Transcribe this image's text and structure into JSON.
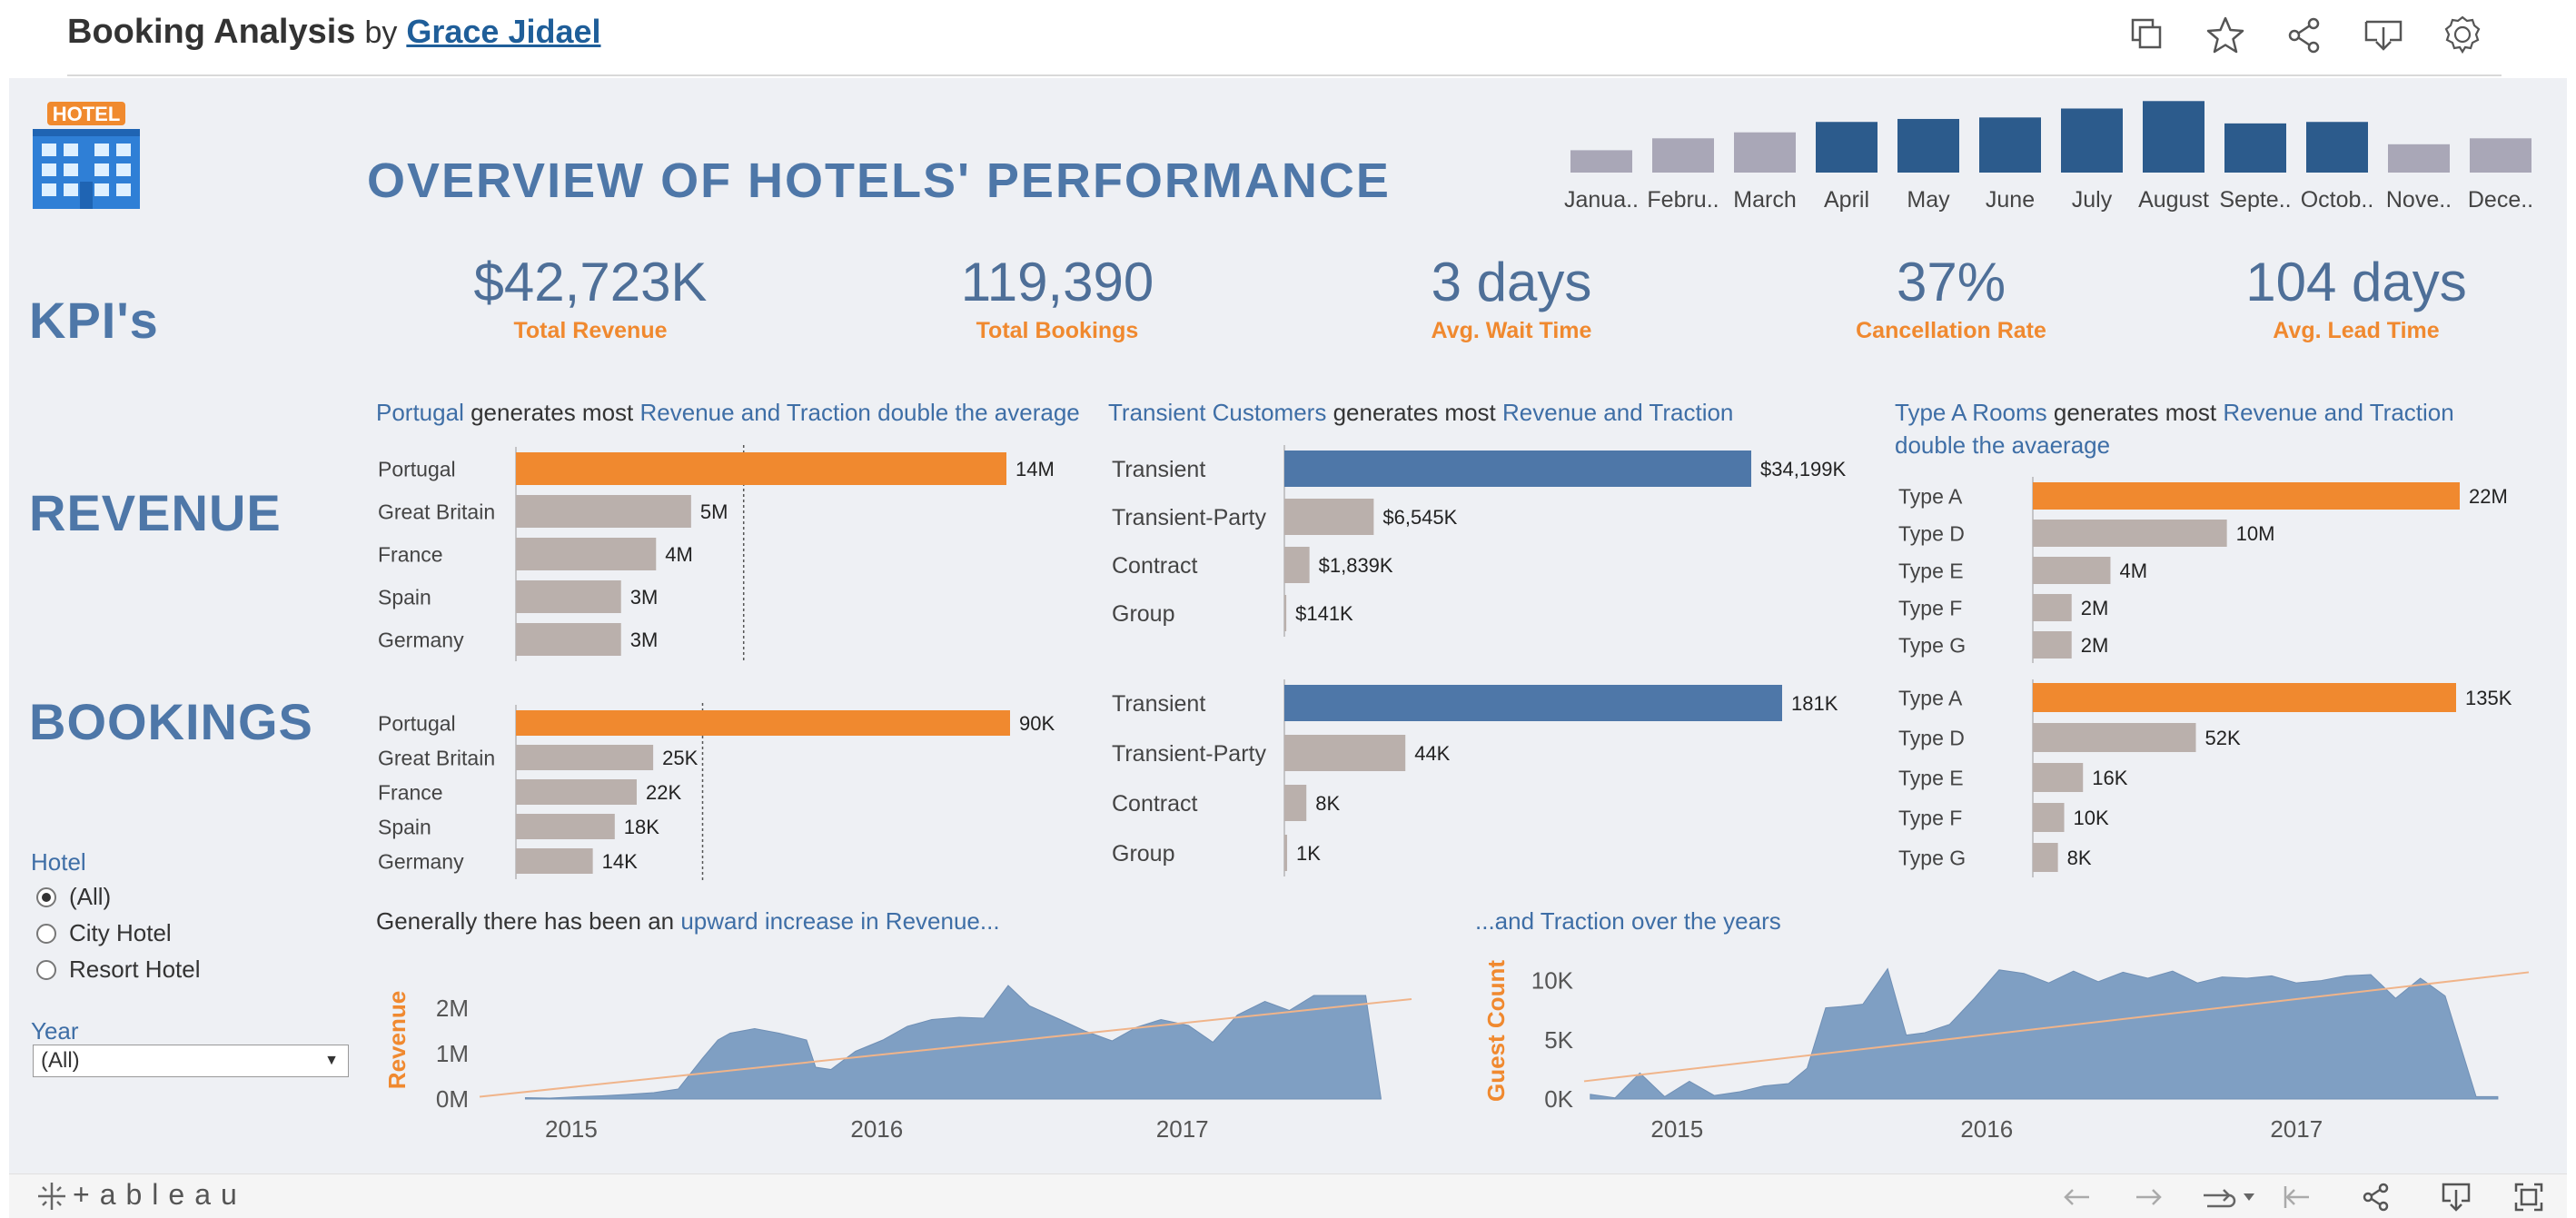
{
  "header": {
    "title": "Booking Analysis",
    "by": "by",
    "author": "Grace Jidael",
    "icons": [
      "copy-icon",
      "star-icon",
      "share-icon",
      "download-icon",
      "badge-icon"
    ]
  },
  "dashboard": {
    "logo_text": "HOTEL",
    "main_title": "OVERVIEW OF HOTELS' PERFORMANCE",
    "months": [
      "Janua..",
      "Febru..",
      "March",
      "April",
      "May",
      "June",
      "July",
      "August",
      "Septe..",
      "Octob..",
      "Nove..",
      "Dece.."
    ],
    "month_values": [
      0.3,
      0.46,
      0.54,
      0.68,
      0.72,
      0.74,
      0.86,
      0.96,
      0.66,
      0.68,
      0.38,
      0.46
    ],
    "month_highlight": [
      false,
      false,
      false,
      true,
      true,
      true,
      true,
      true,
      true,
      true,
      false,
      false
    ],
    "sections": {
      "kpi": "KPI's",
      "revenue": "REVENUE",
      "bookings": "BOOKINGS"
    },
    "kpis": [
      {
        "value": "$42,723K",
        "label": "Total Revenue"
      },
      {
        "value": "119,390",
        "label": "Total Bookings"
      },
      {
        "value": "3 days",
        "label": "Avg. Wait Time"
      },
      {
        "value": "37%",
        "label": "Cancellation Rate"
      },
      {
        "value": "104 days",
        "label": "Avg. Lead Time"
      }
    ],
    "subtitles": {
      "country": {
        "a": "Portugal",
        "b": " generates most ",
        "c": "Revenue and Traction double the average"
      },
      "customer": {
        "a": "Transient Customers",
        "b": " generates most ",
        "c": "Revenue and Traction"
      },
      "room": {
        "a": "Type A Rooms",
        "b": " generates most ",
        "c": "Revenue and Traction double the avaerage"
      },
      "trend_rev": {
        "a": "Generally there has been an ",
        "b": "upward increase in Revenue..."
      },
      "trend_guest": {
        "a": "...and Traction over the years"
      }
    },
    "filters": {
      "hotel_label": "Hotel",
      "hotel_options": [
        "(All)",
        "City Hotel",
        "Resort Hotel"
      ],
      "hotel_selected": "(All)",
      "year_label": "Year",
      "year_value": "(All)"
    },
    "colors": {
      "accent_orange": "#f0892f",
      "primary_blue": "#4e77a8",
      "grey_bar": "#bab0ac",
      "dark_blue": "#2c5b8c",
      "light_grey_bar": "#a9a7b7"
    }
  },
  "chart_data": [
    {
      "type": "bar",
      "id": "month",
      "categories": [
        "Janua..",
        "Febru..",
        "March",
        "April",
        "May",
        "June",
        "July",
        "August",
        "Septe..",
        "Octob..",
        "Nove..",
        "Dece.."
      ],
      "values": [
        0.3,
        0.46,
        0.54,
        0.68,
        0.72,
        0.74,
        0.86,
        0.96,
        0.66,
        0.68,
        0.38,
        0.46
      ]
    },
    {
      "type": "bar",
      "id": "rev_country",
      "categories": [
        "Portugal",
        "Great Britain",
        "France",
        "Spain",
        "Germany"
      ],
      "values": [
        14,
        5,
        4,
        3,
        3
      ],
      "labels": [
        "14M",
        "5M",
        "4M",
        "3M",
        "3M"
      ],
      "reference_line": 6.5
    },
    {
      "type": "bar",
      "id": "book_country",
      "categories": [
        "Portugal",
        "Great Britain",
        "France",
        "Spain",
        "Germany"
      ],
      "values": [
        90,
        25,
        22,
        18,
        14
      ],
      "labels": [
        "90K",
        "25K",
        "22K",
        "18K",
        "14K"
      ],
      "reference_line": 34
    },
    {
      "type": "bar",
      "id": "rev_customer",
      "categories": [
        "Transient",
        "Transient-Party",
        "Contract",
        "Group"
      ],
      "values": [
        34199,
        6545,
        1839,
        141
      ],
      "labels": [
        "$34,199K",
        "$6,545K",
        "$1,839K",
        "$141K"
      ]
    },
    {
      "type": "bar",
      "id": "book_customer",
      "categories": [
        "Transient",
        "Transient-Party",
        "Contract",
        "Group"
      ],
      "values": [
        181,
        44,
        8,
        1
      ],
      "labels": [
        "181K",
        "44K",
        "8K",
        "1K"
      ]
    },
    {
      "type": "bar",
      "id": "rev_room",
      "categories": [
        "Type A",
        "Type D",
        "Type E",
        "Type F",
        "Type G"
      ],
      "values": [
        22,
        10,
        4,
        2,
        2
      ],
      "labels": [
        "22M",
        "10M",
        "4M",
        "2M",
        "2M"
      ]
    },
    {
      "type": "bar",
      "id": "book_room",
      "categories": [
        "Type A",
        "Type D",
        "Type E",
        "Type F",
        "Type G"
      ],
      "values": [
        135,
        52,
        16,
        10,
        8
      ],
      "labels": [
        "135K",
        "52K",
        "16K",
        "10K",
        "8K"
      ]
    },
    {
      "type": "area",
      "id": "rev_trend",
      "ylabel": "Revenue",
      "yticks": [
        "2M",
        "1M",
        "0M"
      ],
      "ytick_values": [
        2,
        1,
        0
      ],
      "xticks": [
        "2015",
        "2016",
        "2017"
      ],
      "xtick_values": [
        2015,
        2016,
        2017
      ],
      "ylim": [
        0,
        2.6
      ],
      "x": [
        2014.85,
        2014.93,
        2015.02,
        2015.1,
        2015.18,
        2015.27,
        2015.35,
        2015.43,
        2015.48,
        2015.52,
        2015.6,
        2015.68,
        2015.77,
        2015.8,
        2015.85,
        2015.93,
        2016.02,
        2016.1,
        2016.18,
        2016.27,
        2016.35,
        2016.43,
        2016.5,
        2016.6,
        2016.68,
        2016.77,
        2016.85,
        2016.93,
        2017.02,
        2017.1,
        2017.18,
        2017.27,
        2017.35,
        2017.43,
        2017.52,
        2017.6,
        2017.65
      ],
      "y": [
        0.03,
        0.02,
        0.05,
        0.07,
        0.1,
        0.14,
        0.22,
        0.9,
        1.3,
        1.45,
        1.55,
        1.45,
        1.3,
        0.7,
        0.65,
        1.05,
        1.3,
        1.6,
        1.75,
        1.8,
        1.78,
        2.5,
        2.05,
        1.75,
        1.5,
        1.28,
        1.58,
        1.75,
        1.62,
        1.25,
        1.85,
        2.15,
        1.95,
        2.28,
        2.28,
        2.28,
        0.02
      ],
      "trend": [
        0.05,
        2.2
      ]
    },
    {
      "type": "area",
      "id": "guest_trend",
      "ylabel": "Guest Count",
      "yticks": [
        "10K",
        "5K",
        "0K"
      ],
      "ytick_values": [
        10,
        5,
        0
      ],
      "xticks": [
        "2015",
        "2016",
        "2017"
      ],
      "xtick_values": [
        2015,
        2016,
        2017
      ],
      "ylim": [
        0,
        11.5
      ],
      "x": [
        2014.72,
        2014.8,
        2014.88,
        2014.96,
        2015.04,
        2015.12,
        2015.2,
        2015.28,
        2015.36,
        2015.42,
        2015.48,
        2015.53,
        2015.6,
        2015.68,
        2015.74,
        2015.8,
        2015.88,
        2015.96,
        2016.04,
        2016.12,
        2016.2,
        2016.28,
        2016.36,
        2016.44,
        2016.52,
        2016.6,
        2016.68,
        2016.76,
        2016.84,
        2016.92,
        2017.0,
        2017.08,
        2017.16,
        2017.24,
        2017.32,
        2017.4,
        2017.48,
        2017.58,
        2017.65
      ],
      "y": [
        0.4,
        0.1,
        2.2,
        0.2,
        1.5,
        0.3,
        0.6,
        1.1,
        1.3,
        2.6,
        7.7,
        7.8,
        8.0,
        11.0,
        5.4,
        5.6,
        6.3,
        8.5,
        10.9,
        10.6,
        9.8,
        10.8,
        9.9,
        10.7,
        10.2,
        10.8,
        9.8,
        10.3,
        10.2,
        10.4,
        9.8,
        10.0,
        10.4,
        10.5,
        8.5,
        10.2,
        8.7,
        0.2,
        0.2
      ],
      "trend": [
        1.5,
        10.7
      ]
    }
  ],
  "footer": {
    "logo": "+ableau"
  }
}
